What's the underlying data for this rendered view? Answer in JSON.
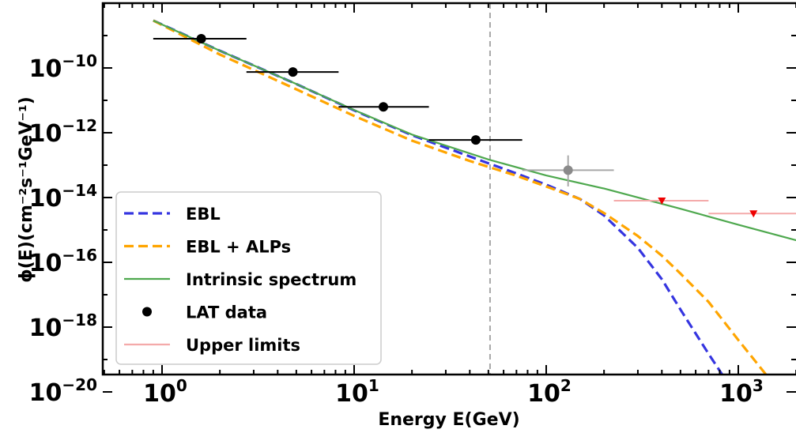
{
  "chart_data": {
    "type": "line",
    "title": "",
    "xlabel": "Energy E(GeV)",
    "ylabel": "ϕ(E)(cm⁻²s⁻¹GeV⁻¹)",
    "x_scale": "log",
    "y_scale": "log",
    "xlim": [
      0.5,
      2000
    ],
    "ylim": [
      1e-20,
      1e-08
    ],
    "grid": false,
    "legend_position": "lower-left",
    "x_ticks": [
      {
        "value": 1,
        "base": "10",
        "exp": "0"
      },
      {
        "value": 10,
        "base": "10",
        "exp": "1"
      },
      {
        "value": 100,
        "base": "10",
        "exp": "2"
      },
      {
        "value": 1000,
        "base": "10",
        "exp": "3"
      }
    ],
    "y_ticks": [
      {
        "value": 1e-10,
        "base": "10",
        "exp": "−10"
      },
      {
        "value": 1e-12,
        "base": "10",
        "exp": "−12"
      },
      {
        "value": 1e-14,
        "base": "10",
        "exp": "−14"
      },
      {
        "value": 1e-16,
        "base": "10",
        "exp": "−16"
      },
      {
        "value": 1e-18,
        "base": "10",
        "exp": "−18"
      },
      {
        "value": 1e-20,
        "base": "10",
        "exp": "−20"
      }
    ],
    "vertical_line": {
      "x": 51,
      "color": "#a8a8a8",
      "style": "dashed"
    },
    "series": [
      {
        "name": "EBL",
        "color": "#3535e0",
        "style": "dashed",
        "points": [
          [
            0.9,
            2.9e-09
          ],
          [
            2,
            3.4e-10
          ],
          [
            5,
            3.2e-11
          ],
          [
            10,
            4.9e-12
          ],
          [
            20,
            8.4e-13
          ],
          [
            40,
            1.85e-13
          ],
          [
            70,
            5.5e-14
          ],
          [
            100,
            2.5e-14
          ],
          [
            150,
            9e-15
          ],
          [
            200,
            2.8e-15
          ],
          [
            300,
            2.8e-16
          ],
          [
            400,
            3e-17
          ],
          [
            500,
            3.5e-18
          ],
          [
            700,
            1.5e-19
          ],
          [
            1000,
            6e-21
          ]
        ]
      },
      {
        "name": "EBL + ALPs",
        "color": "#ffa500",
        "style": "dashed",
        "points": [
          [
            0.9,
            2.9e-09
          ],
          [
            2,
            2.6e-10
          ],
          [
            5,
            2.2e-11
          ],
          [
            10,
            3.3e-12
          ],
          [
            20,
            5.7e-13
          ],
          [
            40,
            1.35e-13
          ],
          [
            70,
            4.7e-14
          ],
          [
            100,
            2.2e-14
          ],
          [
            150,
            9e-15
          ],
          [
            200,
            3.3e-15
          ],
          [
            300,
            6.5e-16
          ],
          [
            400,
            1.6e-16
          ],
          [
            500,
            4.5e-17
          ],
          [
            700,
            6e-18
          ],
          [
            1000,
            4e-19
          ],
          [
            1500,
            2e-20
          ],
          [
            2000,
            3e-21
          ]
        ]
      },
      {
        "name": "Intrinsic spectrum",
        "color": "#4ea84e",
        "style": "solid",
        "points": [
          [
            0.9,
            2.9e-09
          ],
          [
            2,
            3.4e-10
          ],
          [
            5,
            3.2e-11
          ],
          [
            10,
            5e-12
          ],
          [
            20,
            8.8e-13
          ],
          [
            50,
            1.5e-13
          ],
          [
            100,
            4.8e-14
          ],
          [
            200,
            1.9e-14
          ],
          [
            500,
            4.5e-15
          ],
          [
            1000,
            1.45e-15
          ],
          [
            2000,
            4.8e-16
          ]
        ]
      }
    ],
    "lat_data": {
      "name": "LAT data",
      "color": "#000000",
      "points": [
        {
          "x": 1.6,
          "y": 8e-10,
          "xerr": [
            0.9,
            2.75
          ]
        },
        {
          "x": 4.8,
          "y": 7.5e-11,
          "xerr": [
            2.75,
            8.3
          ]
        },
        {
          "x": 14.2,
          "y": 6.3e-12,
          "xerr": [
            8.3,
            24.5
          ]
        },
        {
          "x": 43,
          "y": 6e-13,
          "xerr": [
            24.5,
            75
          ]
        }
      ],
      "faded_point": {
        "x": 130,
        "y": 7e-14,
        "xerr": [
          75,
          225
        ],
        "yerr": [
          2.2e-14,
          2e-13
        ],
        "color": "#8a8a8a"
      }
    },
    "upper_limits": {
      "name": "Upper limits",
      "line_color": "#f4aaaa",
      "marker_color": "#ee0000",
      "points": [
        {
          "x": 400,
          "y": 8e-15,
          "xerr": [
            225,
            700
          ]
        },
        {
          "x": 1200,
          "y": 3.2e-15,
          "xerr": [
            700,
            2000
          ]
        }
      ]
    },
    "legend_entries": [
      {
        "label": "EBL",
        "marker": "dashed-line",
        "color": "#3535e0"
      },
      {
        "label": "EBL + ALPs",
        "marker": "dashed-line",
        "color": "#ffa500"
      },
      {
        "label": "Intrinsic spectrum",
        "marker": "solid-line",
        "color": "#4ea84e"
      },
      {
        "label": "LAT data",
        "marker": "dot",
        "color": "#000000"
      },
      {
        "label": "Upper limits",
        "marker": "solid-line",
        "color": "#f4aaaa"
      }
    ]
  }
}
